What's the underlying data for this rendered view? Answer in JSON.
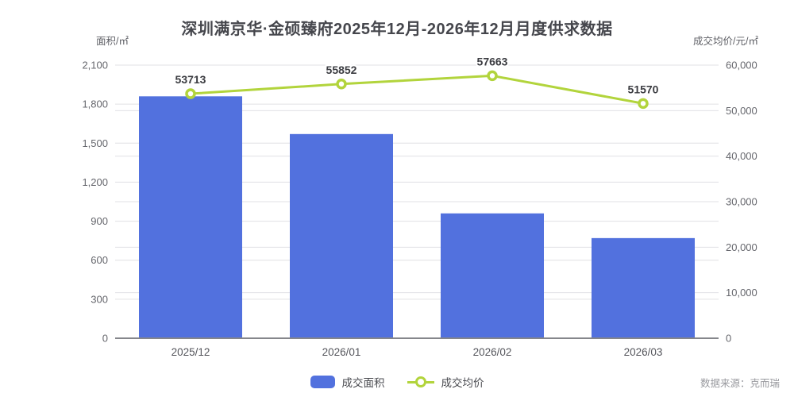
{
  "title": "深圳满京华·金硕臻府2025年12月-2026年12月月度供求数据",
  "left_axis": {
    "unit_label": "面积/㎡"
  },
  "right_axis": {
    "unit_label": "成交均价/元/㎡"
  },
  "legend": {
    "bar_label": "成交面积",
    "line_label": "成交均价"
  },
  "source_note": "数据来源：克而瑞",
  "colors": {
    "bar": "#5271de",
    "line": "#b2d43c",
    "marker_fill": "#ffffff",
    "grid": "#e0e0e4",
    "axis": "#85868b",
    "title_text": "#45464c",
    "tick_text": "#66676d",
    "data_label_text": "#3b3c41"
  },
  "chart_data": {
    "type": "bar",
    "subtype": "bar+line dual axis",
    "title": "深圳满京华·金硕臻府2025年12月-2026年12月月度供求数据",
    "categories": [
      "2025/12",
      "2026/01",
      "2026/02",
      "2026/03"
    ],
    "series": [
      {
        "name": "成交面积",
        "type": "bar",
        "axis": "left",
        "values": [
          1860,
          1570,
          960,
          770
        ],
        "color": "#5271de"
      },
      {
        "name": "成交均价",
        "type": "line",
        "axis": "right",
        "values": [
          53713,
          55852,
          57663,
          51570
        ],
        "color": "#b2d43c",
        "data_labels": [
          "53713",
          "55852",
          "57663",
          "51570"
        ]
      }
    ],
    "left_ylabel": "面积/㎡",
    "right_ylabel": "成交均价/元/㎡",
    "left_ylim": [
      0,
      2100
    ],
    "left_ticks": [
      0,
      300,
      600,
      900,
      1200,
      1500,
      1800,
      2100
    ],
    "right_ylim": [
      0,
      60000
    ],
    "right_ticks": [
      0,
      10000,
      20000,
      30000,
      40000,
      50000,
      60000
    ],
    "grid": true,
    "legend_position": "bottom"
  }
}
